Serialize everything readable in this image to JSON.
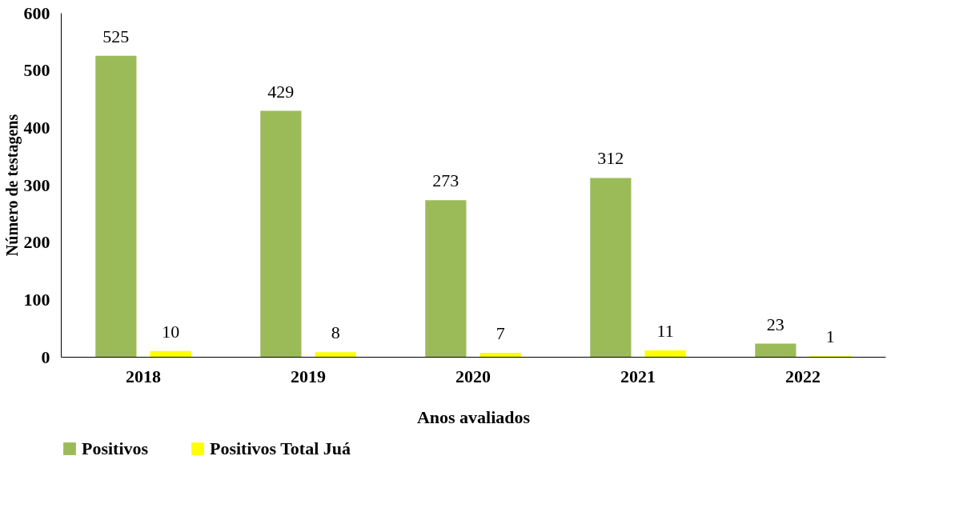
{
  "chart_data": {
    "type": "bar",
    "xlabel": "Anos avaliados",
    "ylabel": "Número de testagens",
    "categories": [
      "2018",
      "2019",
      "2020",
      "2021",
      "2022"
    ],
    "series": [
      {
        "name": "Positivos",
        "color": "#9bbb59",
        "values": [
          525,
          429,
          273,
          312,
          23
        ]
      },
      {
        "name": "Positivos Total Juá",
        "color": "#ffff00",
        "values": [
          10,
          8,
          7,
          11,
          1
        ]
      }
    ],
    "ylim": [
      0,
      600
    ],
    "yticks": [
      0,
      100,
      200,
      300,
      400,
      500,
      600
    ],
    "grid": false,
    "legend": "bottom",
    "data_labels": true
  }
}
